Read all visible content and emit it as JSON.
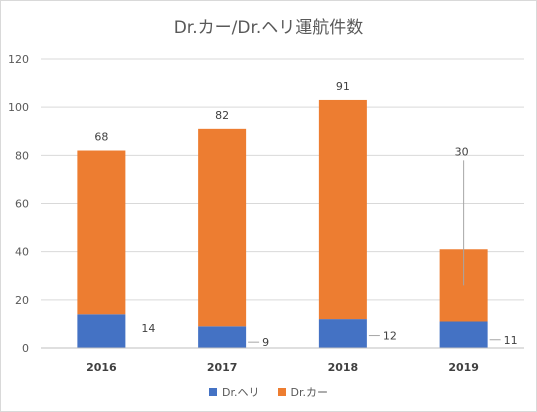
{
  "chart_data": {
    "type": "bar",
    "stacked": true,
    "title": "Dr.カー/Dr.ヘリ運航件数",
    "categories": [
      "2016",
      "2017",
      "2018",
      "2019"
    ],
    "series": [
      {
        "name": "Dr.ヘリ",
        "values": [
          14,
          9,
          12,
          11
        ],
        "color": "#4472C4"
      },
      {
        "name": "Dr.カー",
        "values": [
          68,
          82,
          91,
          30
        ],
        "color": "#ED7D31"
      }
    ],
    "ylim": [
      0,
      120
    ],
    "yticks": [
      0,
      20,
      40,
      60,
      80,
      100,
      120
    ],
    "xlabel": "",
    "ylabel": "",
    "grid": true,
    "legend": "bottom"
  }
}
